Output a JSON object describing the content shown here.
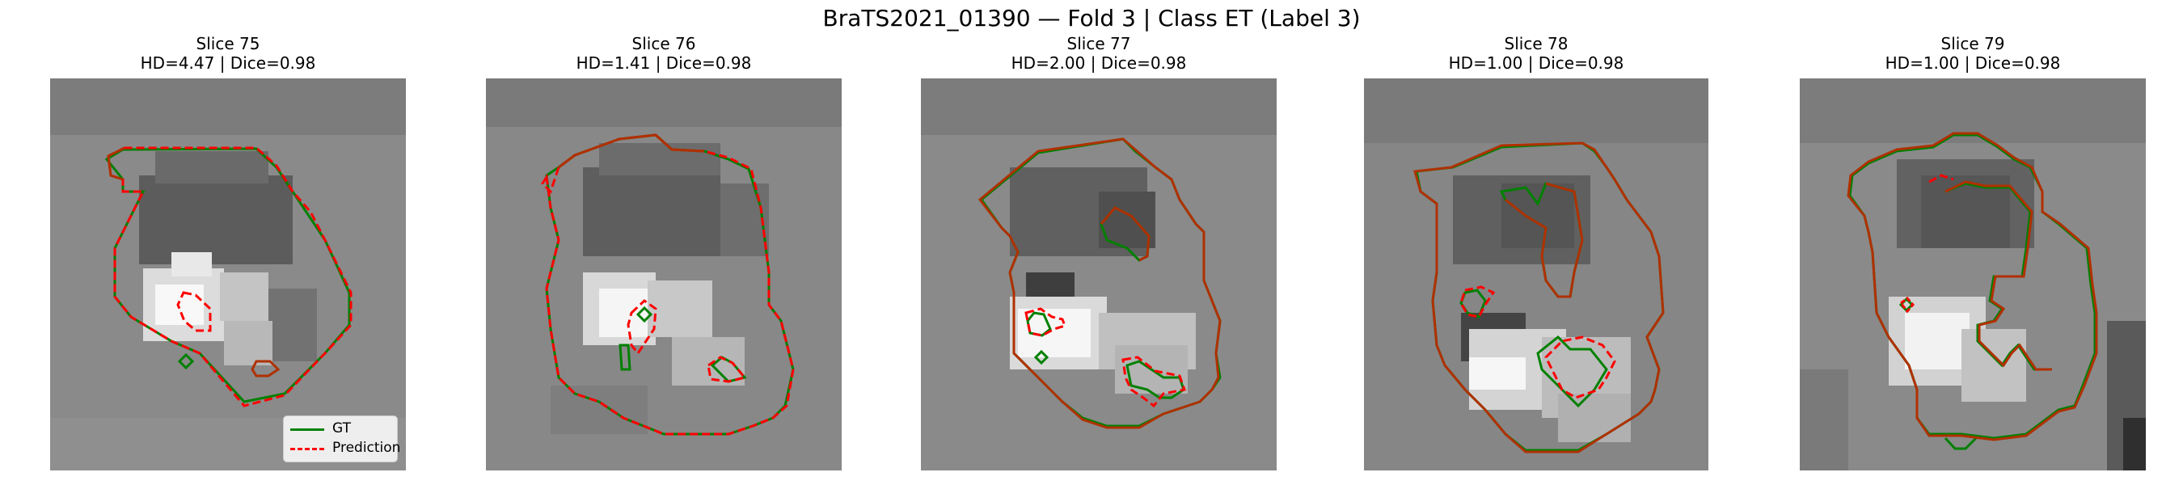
{
  "figure": {
    "title": "BraTS2021_01390 — Fold 3 | Class ET (Label 3)"
  },
  "panels": [
    {
      "title": "Slice 75",
      "metrics": "HD=4.47 | Dice=0.98"
    },
    {
      "title": "Slice 76",
      "metrics": "HD=1.41 | Dice=0.98"
    },
    {
      "title": "Slice 77",
      "metrics": "HD=2.00 | Dice=0.98"
    },
    {
      "title": "Slice 78",
      "metrics": "HD=1.00 | Dice=0.98"
    },
    {
      "title": "Slice 79",
      "metrics": "HD=1.00 | Dice=0.98"
    }
  ],
  "legend": {
    "items": [
      {
        "label": "GT",
        "color": "#008000",
        "style": "solid"
      },
      {
        "label": "Prediction",
        "color": "#ff0000",
        "style": "dashed"
      }
    ]
  },
  "colors": {
    "gt": "#008000",
    "prediction": "#ff0000",
    "overlap": "#b03000"
  }
}
